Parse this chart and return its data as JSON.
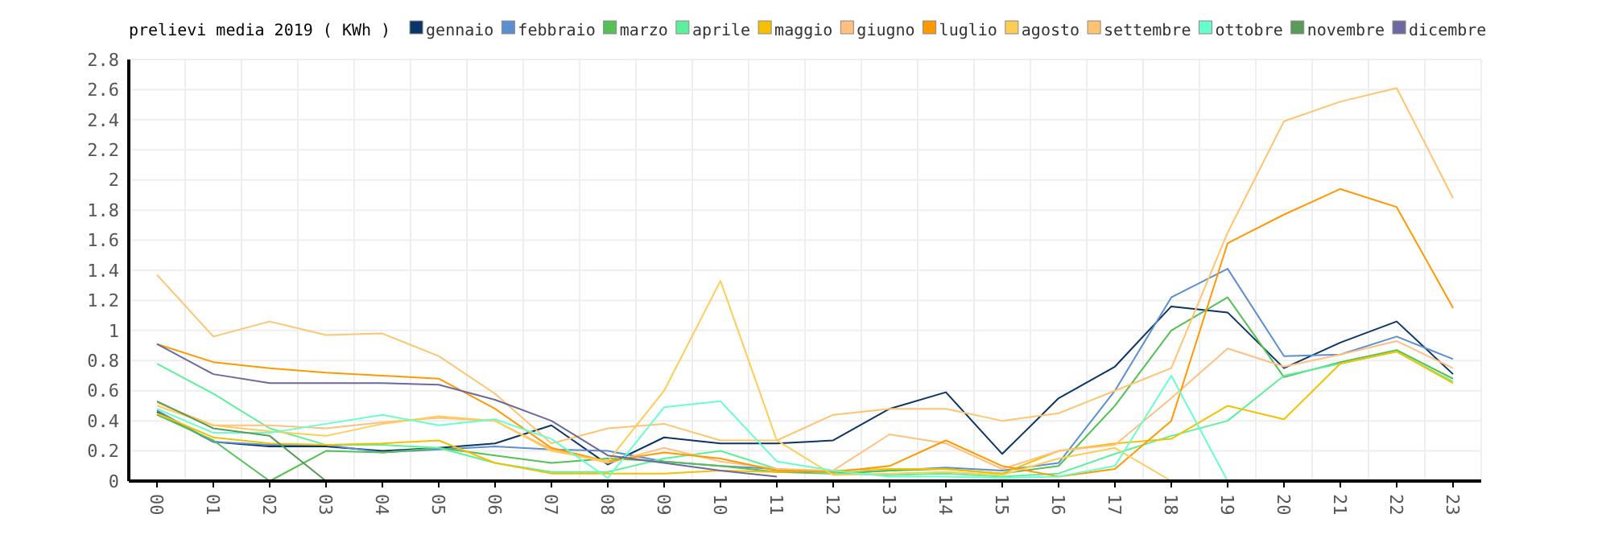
{
  "chart_data": {
    "type": "line",
    "title": "prelievi media 2019 ( KWh )",
    "categories": [
      "00",
      "01",
      "02",
      "03",
      "04",
      "05",
      "06",
      "07",
      "08",
      "09",
      "10",
      "11",
      "12",
      "13",
      "14",
      "15",
      "16",
      "17",
      "18",
      "19",
      "20",
      "21",
      "22",
      "23"
    ],
    "ylim": [
      0,
      2.8
    ],
    "yticks": [
      0,
      0.2,
      0.4,
      0.6,
      0.8,
      1,
      1.2,
      1.4,
      1.6,
      1.8,
      2,
      2.2,
      2.4,
      2.6,
      2.8
    ],
    "grid": true,
    "legend": "top",
    "marker": "none",
    "series": [
      {
        "name": "gennaio",
        "color": "#0b3566",
        "values": [
          0.46,
          0.26,
          0.23,
          0.23,
          0.2,
          0.22,
          0.25,
          0.37,
          0.11,
          0.29,
          0.25,
          0.25,
          0.27,
          0.48,
          0.59,
          0.18,
          0.55,
          0.76,
          1.16,
          1.12,
          0.75,
          0.92,
          1.06,
          0.71
        ]
      },
      {
        "name": "febbraio",
        "color": "#5b8fd0",
        "values": [
          0.47,
          0.26,
          0.24,
          0.24,
          0.19,
          0.21,
          0.23,
          0.21,
          0.2,
          0.13,
          0.1,
          0.08,
          0.05,
          0.07,
          0.09,
          0.07,
          0.12,
          0.6,
          1.22,
          1.41,
          0.83,
          0.84,
          0.96,
          0.81
        ]
      },
      {
        "name": "marzo",
        "color": "#55c055",
        "values": [
          0.44,
          0.27,
          0.0,
          0.2,
          0.19,
          0.22,
          0.17,
          0.12,
          0.15,
          0.13,
          0.1,
          0.06,
          0.05,
          0.07,
          0.08,
          0.05,
          0.1,
          0.5,
          1.0,
          1.22,
          0.69,
          0.79,
          0.87,
          0.68
        ]
      },
      {
        "name": "aprile",
        "color": "#5df09a",
        "values": [
          0.78,
          0.58,
          0.35,
          0.24,
          0.24,
          0.22,
          0.12,
          0.06,
          0.06,
          0.15,
          0.2,
          0.08,
          0.05,
          0.04,
          0.05,
          0.03,
          0.05,
          0.18,
          0.3,
          0.4,
          0.7,
          0.78,
          0.86,
          0.66
        ]
      },
      {
        "name": "maggio",
        "color": "#f5c000",
        "values": [
          0.45,
          0.29,
          0.25,
          0.24,
          0.25,
          0.27,
          0.12,
          0.05,
          0.05,
          0.05,
          0.07,
          0.06,
          0.07,
          0.08,
          0.08,
          0.05,
          0.2,
          0.25,
          0.28,
          0.5,
          0.41,
          0.78,
          0.86,
          0.65
        ]
      },
      {
        "name": "giugno",
        "color": "#ffc080",
        "values": [
          0.52,
          0.37,
          0.37,
          0.35,
          0.39,
          0.42,
          0.4,
          0.21,
          0.12,
          0.22,
          0.13,
          0.08,
          0.07,
          0.31,
          0.25,
          0.08,
          0.2,
          0.24,
          0.55,
          0.88,
          0.76,
          0.84,
          0.93,
          0.75
        ]
      },
      {
        "name": "luglio",
        "color": "#ff9900",
        "values": [
          0.91,
          0.79,
          0.75,
          0.72,
          0.7,
          0.68,
          0.48,
          0.22,
          0.13,
          0.19,
          0.15,
          0.07,
          0.06,
          0.1,
          0.27,
          0.1,
          0.03,
          0.08,
          0.4,
          1.58,
          1.77,
          1.94,
          1.82,
          1.15
        ]
      },
      {
        "name": "agosto",
        "color": "#ffcc55",
        "values": [
          0.5,
          0.37,
          0.33,
          0.3,
          0.38,
          0.43,
          0.4,
          0.2,
          0.13,
          0.6,
          1.33,
          0.27,
          0.04,
          0.05,
          0.06,
          0.04,
          0.15,
          0.22,
          0.0,
          null,
          null,
          null,
          null,
          null
        ]
      },
      {
        "name": "settembre",
        "color": "#ffc470",
        "values": [
          1.37,
          0.96,
          1.06,
          0.97,
          0.98,
          0.83,
          0.58,
          0.25,
          0.35,
          0.38,
          0.27,
          0.27,
          0.44,
          0.48,
          0.48,
          0.4,
          0.45,
          0.6,
          0.75,
          1.65,
          2.39,
          2.52,
          2.61,
          1.88
        ]
      },
      {
        "name": "ottobre",
        "color": "#66ffcc",
        "values": [
          0.48,
          0.32,
          0.32,
          0.38,
          0.44,
          0.37,
          0.41,
          0.28,
          0.02,
          0.49,
          0.53,
          0.13,
          0.07,
          0.03,
          0.03,
          0.02,
          0.03,
          0.1,
          0.7,
          0.0,
          null,
          null,
          null,
          null
        ]
      },
      {
        "name": "novembre",
        "color": "#5a9a5a",
        "values": [
          0.53,
          0.35,
          0.3,
          0.0,
          null,
          null,
          null,
          null,
          null,
          null,
          null,
          null,
          null,
          null,
          null,
          null,
          null,
          null,
          null,
          null,
          null,
          null,
          null,
          null
        ]
      },
      {
        "name": "dicembre",
        "color": "#6a6aa0",
        "values": [
          0.91,
          0.71,
          0.65,
          0.65,
          0.65,
          0.64,
          0.54,
          0.4,
          0.17,
          0.12,
          0.07,
          0.03,
          null,
          null,
          null,
          null,
          null,
          null,
          null,
          null,
          null,
          null,
          null,
          null
        ]
      }
    ]
  }
}
